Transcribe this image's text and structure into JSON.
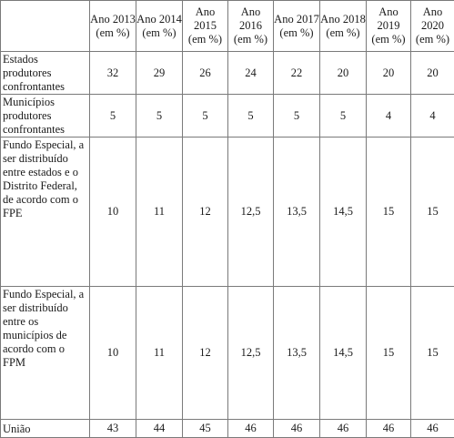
{
  "table": {
    "header_corner": "",
    "columns": [
      {
        "year": "Ano 2013",
        "unit": "(em %)"
      },
      {
        "year": "Ano 2014",
        "unit": "(em %)"
      },
      {
        "year": "Ano 2015",
        "unit": "(em %)"
      },
      {
        "year": "Ano 2016",
        "unit": "(em %)"
      },
      {
        "year": "Ano 2017",
        "unit": "(em %)"
      },
      {
        "year": "Ano 2018",
        "unit": "(em %)"
      },
      {
        "year": "Ano 2019",
        "unit": "(em %)"
      },
      {
        "year": "Ano 2020",
        "unit": "(em %)"
      }
    ],
    "rows": [
      {
        "label": "Estados produtores confrontantes",
        "values": [
          "32",
          "29",
          "26",
          "24",
          "22",
          "20",
          "20",
          "20"
        ]
      },
      {
        "label": "Municípios produtores confrontantes",
        "values": [
          "5",
          "5",
          "5",
          "5",
          "5",
          "5",
          "4",
          "4"
        ]
      },
      {
        "label": "Fundo Especial, a ser distribuído entre estados e o Distrito Federal, de acordo com o FPE",
        "values": [
          "10",
          "11",
          "12",
          "12,5",
          "13,5",
          "14,5",
          "15",
          "15"
        ]
      },
      {
        "label": "Fundo Especial, a ser distribuído entre os municípios de acordo com o FPM",
        "values": [
          "10",
          "11",
          "12",
          "12,5",
          "13,5",
          "14,5",
          "15",
          "15"
        ]
      },
      {
        "label": "União",
        "values": [
          "43",
          "44",
          "45",
          "46",
          "46",
          "46",
          "46",
          "46"
        ]
      }
    ]
  }
}
